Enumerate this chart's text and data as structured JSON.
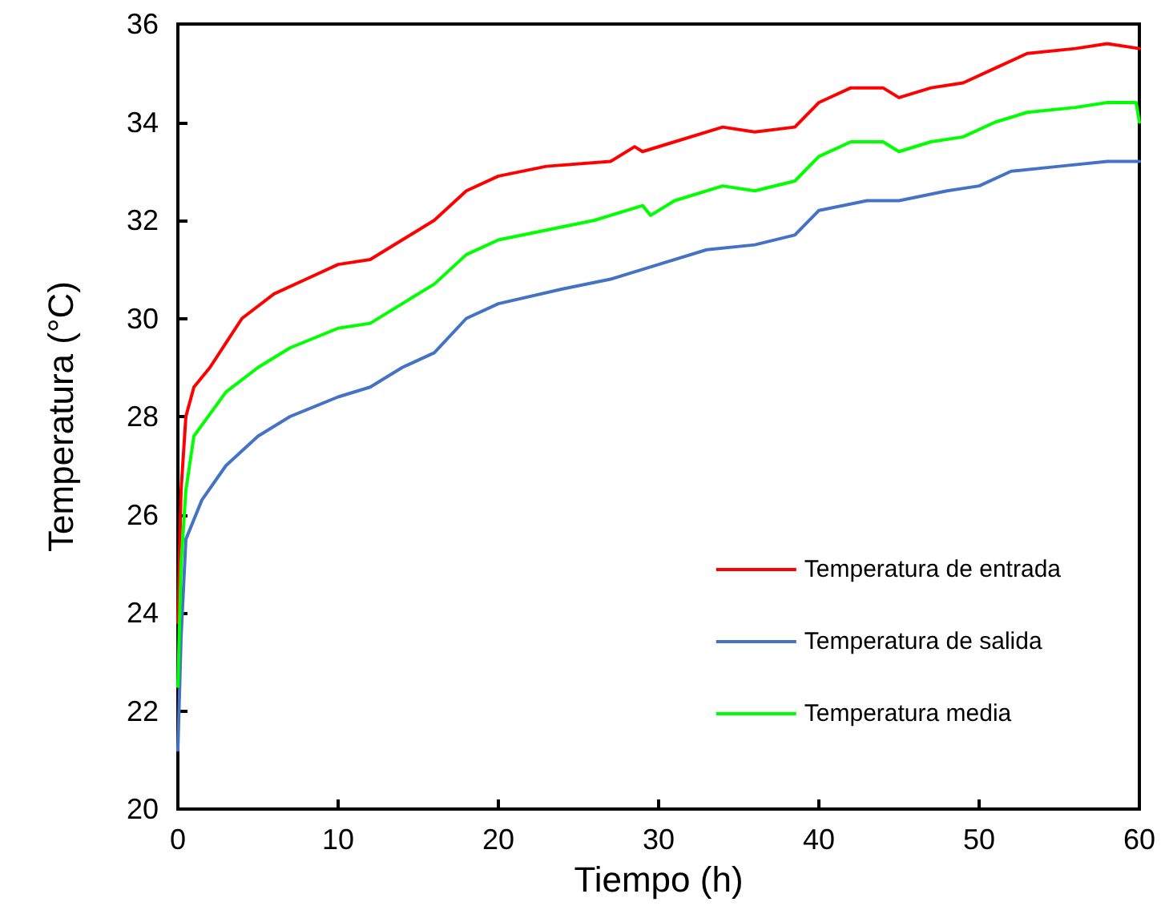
{
  "chart_data": {
    "type": "line",
    "xlabel": "Tiempo (h)",
    "ylabel": "Temperatura (°C)",
    "xlim": [
      0,
      60
    ],
    "xticks": [
      0,
      10,
      20,
      30,
      40,
      50,
      60
    ],
    "ylim": [
      20,
      36
    ],
    "yticks": [
      20,
      22,
      24,
      26,
      28,
      30,
      32,
      34,
      36
    ],
    "grid": false,
    "legend": "bottom right",
    "marker": "none",
    "line_style": "solid",
    "series": [
      {
        "name": "Temperatura de entrada",
        "color": "#ff0000",
        "x": [
          0,
          0.2,
          0.5,
          1,
          2,
          3,
          4,
          6,
          8,
          10,
          12,
          14,
          16,
          18,
          20,
          23,
          27,
          28.5,
          29,
          31,
          34,
          36,
          38.5,
          40,
          42,
          44,
          45,
          47,
          49,
          51,
          53,
          56,
          58,
          60
        ],
        "values": [
          23.8,
          26.5,
          28,
          28.6,
          29,
          29.5,
          30,
          30.5,
          30.8,
          31.1,
          31.2,
          31.6,
          32,
          32.6,
          32.9,
          33.1,
          33.2,
          33.5,
          33.4,
          33.6,
          33.9,
          33.8,
          33.9,
          34.4,
          34.7,
          34.7,
          34.5,
          34.7,
          34.8,
          35.1,
          35.4,
          35.5,
          35.6,
          35.5
        ]
      },
      {
        "name": "Temperatura de salida",
        "color": "#4472c4",
        "x": [
          0,
          0.2,
          0.5,
          1.5,
          3,
          5,
          7,
          10,
          12,
          14,
          16,
          18,
          20,
          24,
          27,
          30,
          33,
          36,
          38.5,
          40,
          43,
          45,
          48,
          50,
          52,
          55,
          58,
          60
        ],
        "values": [
          21.2,
          23.5,
          25.5,
          26.3,
          27,
          27.6,
          28,
          28.4,
          28.6,
          29,
          29.3,
          30,
          30.3,
          30.6,
          30.8,
          31.1,
          31.4,
          31.5,
          31.7,
          32.2,
          32.4,
          32.4,
          32.6,
          32.7,
          33,
          33.1,
          33.2,
          33.2
        ]
      },
      {
        "name": "Temperatura media",
        "color": "#00ff00",
        "x": [
          0,
          0.2,
          0.5,
          1,
          3,
          5,
          7,
          10,
          12,
          14,
          16,
          18,
          20,
          23,
          26,
          29,
          29.5,
          31,
          34,
          36,
          38.5,
          40,
          42,
          44,
          45,
          47,
          49,
          51,
          53,
          56,
          58,
          59.8,
          60
        ],
        "values": [
          22.5,
          25,
          26.5,
          27.6,
          28.5,
          29,
          29.4,
          29.8,
          29.9,
          30.3,
          30.7,
          31.3,
          31.6,
          31.8,
          32,
          32.3,
          32.1,
          32.4,
          32.7,
          32.6,
          32.8,
          33.3,
          33.6,
          33.6,
          33.4,
          33.6,
          33.7,
          34,
          34.2,
          34.3,
          34.4,
          34.4,
          34
        ]
      }
    ]
  }
}
